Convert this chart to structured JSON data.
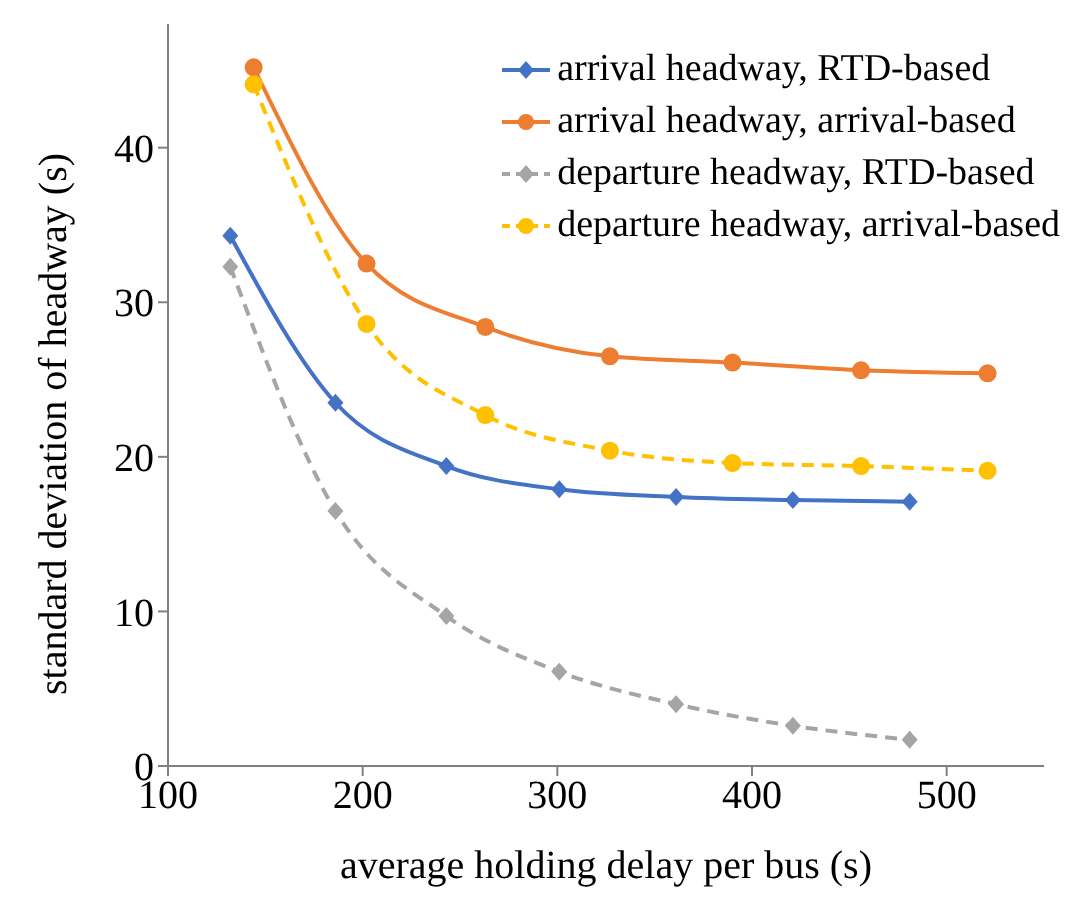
{
  "chart_data": {
    "type": "line",
    "xlabel": "average holding delay per bus (s)",
    "ylabel": "standard deviation of headway (s)",
    "xlim": [
      100,
      550
    ],
    "xticks": [
      100,
      200,
      300,
      400,
      500
    ],
    "ylim": [
      0,
      48
    ],
    "yticks": [
      0,
      10,
      20,
      30,
      40
    ],
    "grid": false,
    "legend": "top right",
    "series": [
      {
        "name": "arrival headway, RTD-based",
        "color": "#4472c4",
        "marker": "diamond",
        "line_style": "solid",
        "x": [
          132,
          186,
          243,
          301,
          361,
          421,
          481
        ],
        "values": [
          34.3,
          23.5,
          19.4,
          17.9,
          17.4,
          17.2,
          17.1
        ]
      },
      {
        "name": "arrival headway, arrival-based",
        "color": "#ed7d31",
        "marker": "circle",
        "line_style": "solid",
        "x": [
          144,
          202,
          263,
          327,
          390,
          456,
          521
        ],
        "values": [
          45.2,
          32.5,
          28.4,
          26.5,
          26.1,
          25.6,
          25.4
        ]
      },
      {
        "name": "departure headway, RTD-based",
        "color": "#a5a5a5",
        "marker": "diamond",
        "line_style": "dashed",
        "x": [
          132,
          186,
          243,
          301,
          361,
          421,
          481
        ],
        "values": [
          32.3,
          16.5,
          9.7,
          6.1,
          4.0,
          2.6,
          1.7
        ]
      },
      {
        "name": "departure headway, arrival-based",
        "color": "#ffc000",
        "marker": "circle",
        "line_style": "dashed",
        "x": [
          144,
          202,
          263,
          327,
          390,
          456,
          521
        ],
        "values": [
          44.1,
          28.6,
          22.7,
          20.4,
          19.6,
          19.4,
          19.1
        ]
      }
    ]
  }
}
